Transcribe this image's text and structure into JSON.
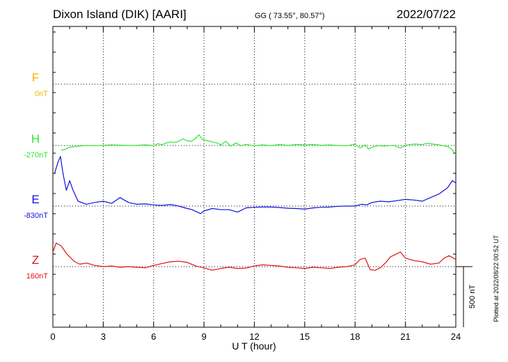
{
  "header": {
    "station": "Dixon Island (DIK)  [AARI]",
    "coords": "GG ( 73.55°,  80.57°)",
    "date": "2022/07/22"
  },
  "chart_data": {
    "type": "line",
    "xlabel": "U T (hour)",
    "xlim": [
      0,
      24
    ],
    "x_ticks": [
      0,
      3,
      6,
      9,
      12,
      15,
      18,
      21,
      24
    ],
    "scale_bar": "500 nT",
    "footer_note": "Plotted at 2022/08/22 00:52 UT",
    "components": [
      {
        "label": "F",
        "baseline": "0nT",
        "color": "#f0b400"
      },
      {
        "label": "H",
        "baseline": "-270nT",
        "color": "#2ce82c"
      },
      {
        "label": "E",
        "baseline": "-830nT",
        "color": "#1010d8"
      },
      {
        "label": "Z",
        "baseline": "160nT",
        "color": "#e01010"
      }
    ],
    "series": [
      {
        "name": "H",
        "x": [
          0.5,
          0.75,
          1.0,
          1.25,
          1.5,
          2.0,
          2.5,
          3.0,
          3.5,
          4.0,
          4.5,
          5.0,
          5.5,
          6.0,
          6.25,
          6.5,
          6.75,
          7.0,
          7.25,
          7.5,
          7.75,
          8.0,
          8.25,
          8.5,
          8.7,
          8.9,
          9.2,
          9.5,
          9.8,
          10.0,
          10.3,
          10.6,
          10.9,
          11.2,
          11.5,
          11.8,
          12.0,
          12.5,
          13.0,
          13.5,
          14.0,
          14.5,
          15.0,
          15.5,
          16.0,
          16.5,
          17.0,
          17.5,
          18.0,
          18.3,
          18.6,
          18.8,
          19.1,
          19.4,
          19.7,
          20.0,
          20.3,
          20.5,
          20.7,
          21.0,
          21.5,
          22.0,
          22.3,
          22.6,
          23.0,
          23.5,
          23.75,
          24.0
        ],
        "y": [
          -310,
          -300,
          -285,
          -280,
          -275,
          -270,
          -272,
          -268,
          -265,
          -267,
          -270,
          -268,
          -265,
          -270,
          -255,
          -263,
          -250,
          -240,
          -245,
          -235,
          -215,
          -232,
          -235,
          -210,
          -182,
          -220,
          -230,
          -240,
          -250,
          -265,
          -235,
          -275,
          -248,
          -272,
          -260,
          -268,
          -272,
          -265,
          -270,
          -262,
          -268,
          -262,
          -265,
          -262,
          -268,
          -265,
          -270,
          -272,
          -260,
          -290,
          -265,
          -300,
          -280,
          -270,
          -275,
          -272,
          -268,
          -280,
          -290,
          -268,
          -258,
          -262,
          -252,
          -258,
          -265,
          -278,
          -300,
          -345
        ]
      },
      {
        "name": "E",
        "x": [
          0.1,
          0.3,
          0.45,
          0.6,
          0.8,
          1.0,
          1.2,
          1.5,
          2.0,
          2.5,
          3.0,
          3.5,
          4.0,
          4.5,
          5.0,
          5.5,
          6.0,
          6.5,
          7.0,
          7.5,
          8.0,
          8.3,
          8.6,
          8.8,
          9.0,
          9.5,
          10.0,
          10.5,
          11.0,
          11.5,
          12.0,
          12.5,
          13.0,
          13.5,
          14.0,
          14.5,
          15.0,
          15.5,
          16.0,
          16.5,
          17.0,
          17.5,
          18.0,
          18.4,
          18.7,
          19.0,
          19.5,
          20.0,
          20.5,
          21.0,
          21.5,
          22.0,
          22.5,
          23.0,
          23.5,
          23.8,
          24.0
        ],
        "y": [
          -560,
          -470,
          -420,
          -560,
          -700,
          -620,
          -700,
          -790,
          -815,
          -800,
          -790,
          -808,
          -760,
          -800,
          -815,
          -812,
          -820,
          -825,
          -818,
          -830,
          -850,
          -860,
          -880,
          -892,
          -870,
          -850,
          -860,
          -860,
          -880,
          -845,
          -840,
          -838,
          -838,
          -842,
          -848,
          -850,
          -855,
          -845,
          -840,
          -838,
          -832,
          -830,
          -830,
          -815,
          -820,
          -800,
          -790,
          -795,
          -785,
          -775,
          -780,
          -790,
          -760,
          -730,
          -680,
          -620,
          -640
        ]
      },
      {
        "name": "Z",
        "x": [
          0.0,
          0.2,
          0.5,
          0.8,
          1.0,
          1.3,
          1.6,
          2.0,
          2.5,
          3.0,
          3.5,
          4.0,
          4.5,
          5.0,
          5.5,
          6.0,
          6.5,
          7.0,
          7.5,
          8.0,
          8.5,
          9.0,
          9.5,
          10.0,
          10.5,
          11.0,
          11.5,
          12.0,
          12.5,
          13.0,
          13.5,
          14.0,
          14.5,
          15.0,
          15.5,
          16.0,
          16.5,
          17.0,
          17.5,
          18.0,
          18.3,
          18.6,
          18.9,
          19.2,
          19.5,
          19.8,
          20.1,
          20.4,
          20.7,
          21.0,
          21.5,
          22.0,
          22.5,
          23.0,
          23.3,
          23.6,
          24.0
        ],
        "y": [
          280,
          355,
          330,
          270,
          240,
          200,
          180,
          190,
          170,
          160,
          165,
          155,
          160,
          155,
          150,
          170,
          185,
          200,
          205,
          195,
          165,
          150,
          130,
          145,
          155,
          145,
          148,
          165,
          175,
          170,
          165,
          155,
          150,
          145,
          155,
          150,
          145,
          155,
          160,
          175,
          220,
          230,
          135,
          130,
          150,
          190,
          240,
          260,
          280,
          230,
          210,
          200,
          180,
          190,
          230,
          250,
          220
        ]
      }
    ]
  }
}
